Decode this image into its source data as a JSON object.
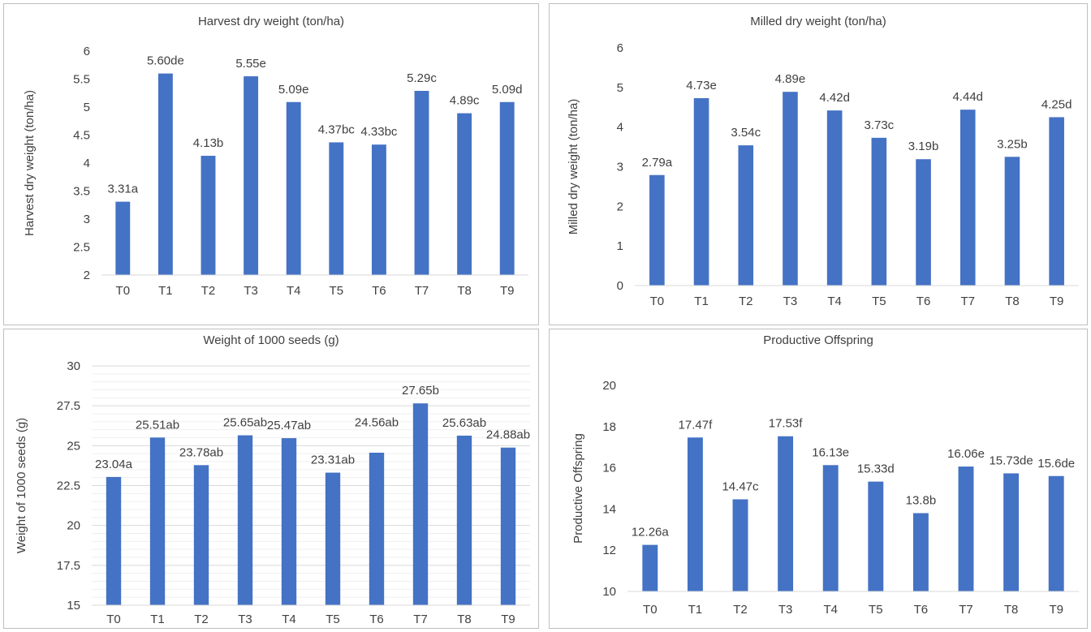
{
  "chart_data": [
    {
      "type": "bar",
      "title": "Harvest dry weight (ton/ha)",
      "xlabel": "",
      "ylabel": "Harvest dry weight (ton/ha)",
      "categories": [
        "T0",
        "T1",
        "T2",
        "T3",
        "T4",
        "T5",
        "T6",
        "T7",
        "T8",
        "T9"
      ],
      "values": [
        3.31,
        5.6,
        4.13,
        5.55,
        5.09,
        4.37,
        4.33,
        5.29,
        4.89,
        5.09
      ],
      "data_labels": [
        "3.31a",
        "5.60de",
        "4.13b",
        "5.55e",
        "5.09e",
        "4.37bc",
        "4.33bc",
        "5.29c",
        "4.89c",
        "5.09d"
      ],
      "ylim": [
        2,
        6
      ],
      "yticks": [
        "2",
        "2.5",
        "3",
        "3.5",
        "4",
        "4.5",
        "5",
        "5.5",
        "6"
      ],
      "grid": false,
      "bar_color": "#4472c4"
    },
    {
      "type": "bar",
      "title": "Milled dry weight (ton/ha)",
      "xlabel": "",
      "ylabel": "Milled dry weight (ton/ha)",
      "categories": [
        "T0",
        "T1",
        "T2",
        "T3",
        "T4",
        "T5",
        "T6",
        "T7",
        "T8",
        "T9"
      ],
      "values": [
        2.79,
        4.73,
        3.54,
        4.89,
        4.42,
        3.73,
        3.19,
        4.44,
        3.25,
        4.25
      ],
      "data_labels": [
        "2.79a",
        "4.73e",
        "3.54c",
        "4.89e",
        "4.42d",
        "3.73c",
        "3.19b",
        "4.44d",
        "3.25b",
        "4.25d"
      ],
      "ylim": [
        0,
        6
      ],
      "yticks": [
        "0",
        "1",
        "2",
        "3",
        "4",
        "5",
        "6"
      ],
      "grid": false,
      "bar_color": "#4472c4"
    },
    {
      "type": "bar",
      "title": "Weight of 1000 seeds (g)",
      "xlabel": "",
      "ylabel": "Weight of 1000 seeds (g)",
      "categories": [
        "T0",
        "T1",
        "T2",
        "T3",
        "T4",
        "T5",
        "T6",
        "T7",
        "T8",
        "T9"
      ],
      "values": [
        23.04,
        25.51,
        23.78,
        25.65,
        25.47,
        23.31,
        24.56,
        27.65,
        25.63,
        24.88
      ],
      "data_labels": [
        "23.04a",
        "25.51ab",
        "23.78ab",
        "25.65ab",
        "25.47ab",
        "23.31ab",
        "",
        "27.65b",
        "25.63ab",
        "24.88ab"
      ],
      "extra_label": "24.56ab",
      "ylim": [
        15,
        30
      ],
      "yticks": [
        "15",
        "17.5",
        "20",
        "22.5",
        "25",
        "27.5",
        "30"
      ],
      "grid": true,
      "bar_color": "#4472c4"
    },
    {
      "type": "bar",
      "title": "Productive Offspring",
      "xlabel": "",
      "ylabel": "Productive Offspring",
      "categories": [
        "T0",
        "T1",
        "T2",
        "T3",
        "T4",
        "T5",
        "T6",
        "T7",
        "T8",
        "T9"
      ],
      "values": [
        12.26,
        17.47,
        14.47,
        17.53,
        16.13,
        15.33,
        13.8,
        16.06,
        15.73,
        15.6
      ],
      "data_labels": [
        "12.26a",
        "17.47f",
        "14.47c",
        "17.53f",
        "16.13e",
        "15.33d",
        "13.8b",
        "16.06e",
        "15.73de",
        "15.6de"
      ],
      "ylim": [
        10,
        20
      ],
      "yticks": [
        "10",
        "12",
        "14",
        "16",
        "18",
        "20"
      ],
      "grid": false,
      "bar_color": "#4472c4"
    }
  ]
}
